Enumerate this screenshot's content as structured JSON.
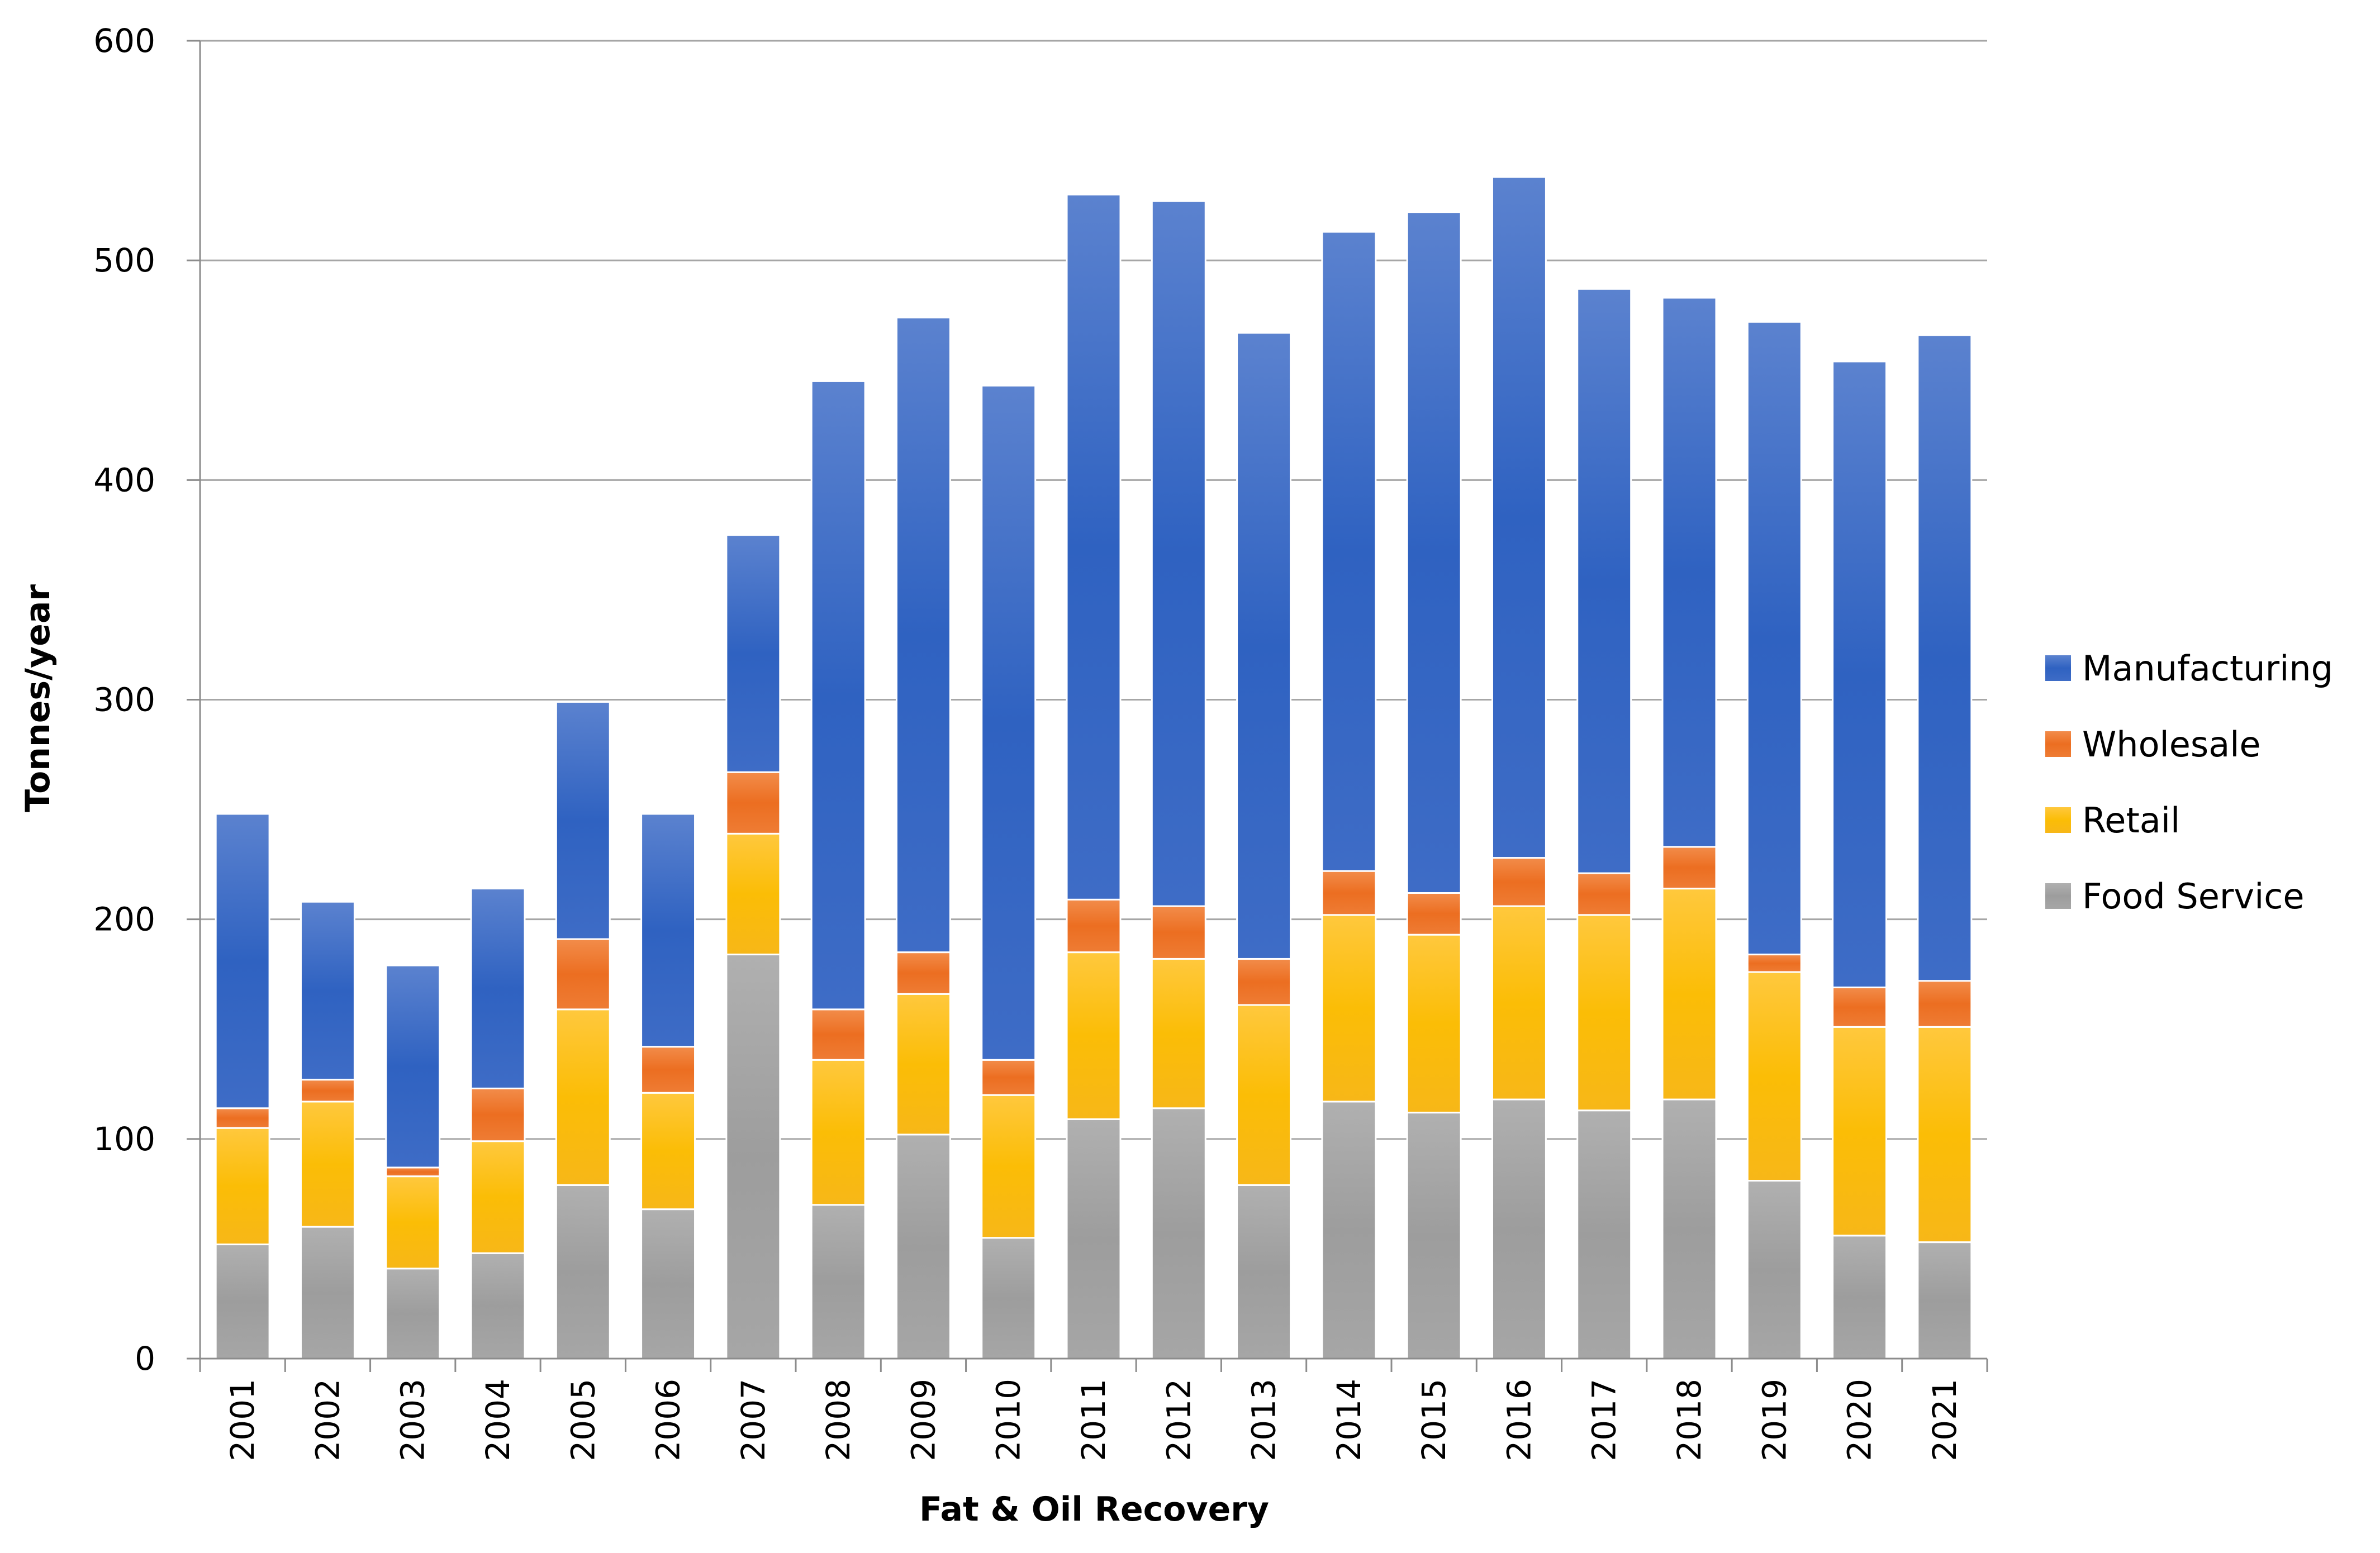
{
  "chart_data": {
    "type": "bar",
    "stacked": true,
    "title": "",
    "xlabel": "Fat & Oil Recovery",
    "ylabel": "Tonnes/year",
    "ylim": [
      0,
      600
    ],
    "yticks": [
      "0",
      "100",
      "200",
      "300",
      "400",
      "500",
      "600"
    ],
    "grid": true,
    "legend_position": "right",
    "categories": [
      "2001",
      "2002",
      "2003",
      "2004",
      "2005",
      "2006",
      "2007",
      "2008",
      "2009",
      "2010",
      "2011",
      "2012",
      "2013",
      "2014",
      "2015",
      "2016",
      "2017",
      "2018",
      "2019",
      "2020",
      "2021"
    ],
    "series": [
      {
        "name": "Food Service",
        "color": "#a5a5a5",
        "values": [
          52,
          60,
          41,
          48,
          79,
          68,
          184,
          70,
          102,
          55,
          109,
          114,
          79,
          117,
          112,
          118,
          113,
          118,
          81,
          56,
          53
        ]
      },
      {
        "name": "Retail",
        "color": "#ffc000",
        "values": [
          53,
          57,
          42,
          51,
          80,
          53,
          55,
          66,
          64,
          65,
          76,
          68,
          82,
          85,
          81,
          88,
          89,
          96,
          95,
          95,
          98
        ]
      },
      {
        "name": "Wholesale",
        "color": "#ed7d31",
        "values": [
          9,
          10,
          4,
          24,
          32,
          21,
          28,
          23,
          19,
          16,
          24,
          24,
          21,
          20,
          19,
          22,
          19,
          19,
          8,
          18,
          21
        ]
      },
      {
        "name": "Manufacturing",
        "color": "#4472c4",
        "values": [
          134,
          81,
          92,
          91,
          108,
          106,
          108,
          286,
          289,
          307,
          321,
          321,
          285,
          291,
          310,
          310,
          266,
          250,
          288,
          285,
          294
        ]
      }
    ],
    "legend_order": [
      "Manufacturing",
      "Wholesale",
      "Retail",
      "Food Service"
    ]
  }
}
